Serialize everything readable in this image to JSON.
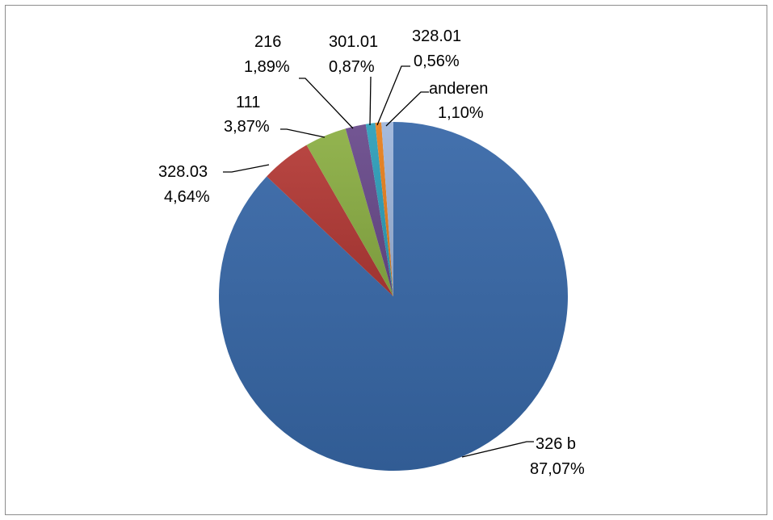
{
  "chart_data": {
    "type": "pie",
    "title": "",
    "slices": [
      {
        "label": "326 b",
        "value": 87.07,
        "value_label": "87,07%",
        "color": "#3868a8"
      },
      {
        "label": "328.03",
        "value": 4.64,
        "value_label": "4,64%",
        "color": "#b33a36"
      },
      {
        "label": "111",
        "value": 3.87,
        "value_label": "3,87%",
        "color": "#8caf45"
      },
      {
        "label": "216",
        "value": 1.89,
        "value_label": "1,89%",
        "color": "#6a4b8c"
      },
      {
        "label": "301.01",
        "value": 0.87,
        "value_label": "0,87%",
        "color": "#2f9fba"
      },
      {
        "label": "328.01",
        "value": 0.56,
        "value_label": "0,56%",
        "color": "#e8801f"
      },
      {
        "label": "anderen",
        "value": 1.1,
        "value_label": "1,10%",
        "color": "#9fb7dc"
      }
    ],
    "legend": "none"
  }
}
